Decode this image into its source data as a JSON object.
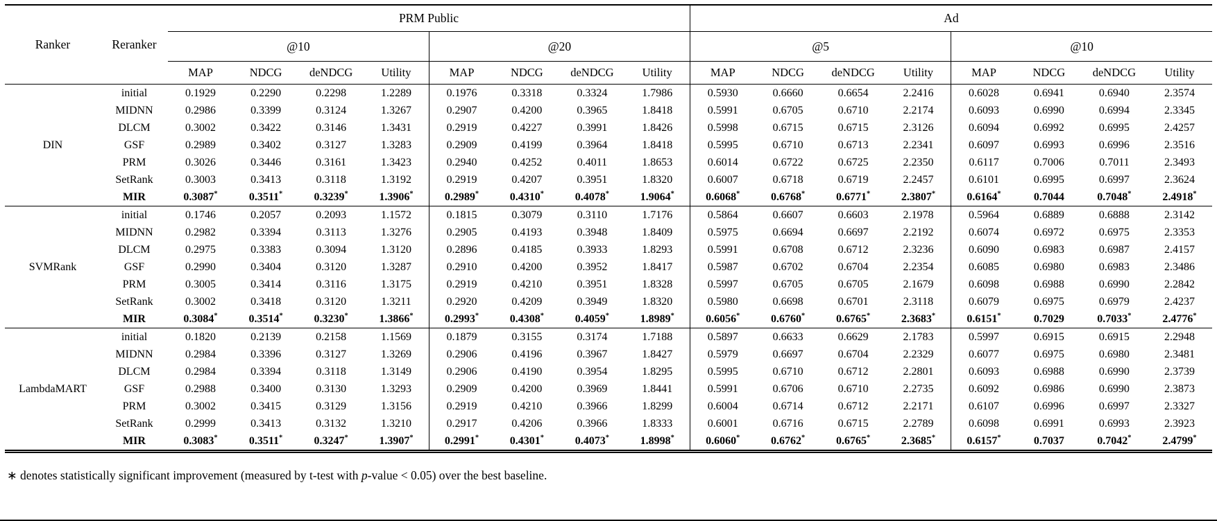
{
  "table": {
    "corner": {
      "ranker": "Ranker",
      "reranker": "Reranker"
    },
    "datasets": [
      {
        "name": "PRM Public",
        "cutoffs": [
          "@10",
          "@20"
        ]
      },
      {
        "name": "Ad",
        "cutoffs": [
          "@5",
          "@10"
        ]
      }
    ],
    "metrics": [
      "MAP",
      "NDCG",
      "deNDCG",
      "Utility"
    ],
    "blocks": [
      {
        "ranker": "DIN",
        "rows": [
          {
            "reranker": "initial",
            "bold": false,
            "values": [
              "0.1929",
              "0.2290",
              "0.2298",
              "1.2289",
              "0.1976",
              "0.3318",
              "0.3324",
              "1.7986",
              "0.5930",
              "0.6660",
              "0.6654",
              "2.2416",
              "0.6028",
              "0.6941",
              "0.6940",
              "2.3574"
            ]
          },
          {
            "reranker": "MIDNN",
            "bold": false,
            "values": [
              "0.2986",
              "0.3399",
              "0.3124",
              "1.3267",
              "0.2907",
              "0.4200",
              "0.3965",
              "1.8418",
              "0.5991",
              "0.6705",
              "0.6710",
              "2.2174",
              "0.6093",
              "0.6990",
              "0.6994",
              "2.3345"
            ]
          },
          {
            "reranker": "DLCM",
            "bold": false,
            "values": [
              "0.3002",
              "0.3422",
              "0.3146",
              "1.3431",
              "0.2919",
              "0.4227",
              "0.3991",
              "1.8426",
              "0.5998",
              "0.6715",
              "0.6715",
              "2.3126",
              "0.6094",
              "0.6992",
              "0.6995",
              "2.4257"
            ]
          },
          {
            "reranker": "GSF",
            "bold": false,
            "values": [
              "0.2989",
              "0.3402",
              "0.3127",
              "1.3283",
              "0.2909",
              "0.4199",
              "0.3964",
              "1.8418",
              "0.5995",
              "0.6710",
              "0.6713",
              "2.2341",
              "0.6097",
              "0.6993",
              "0.6996",
              "2.3516"
            ]
          },
          {
            "reranker": "PRM",
            "bold": false,
            "values": [
              "0.3026",
              "0.3446",
              "0.3161",
              "1.3423",
              "0.2940",
              "0.4252",
              "0.4011",
              "1.8653",
              "0.6014",
              "0.6722",
              "0.6725",
              "2.2350",
              "0.6117",
              "0.7006",
              "0.7011",
              "2.3493"
            ]
          },
          {
            "reranker": "SetRank",
            "bold": false,
            "values": [
              "0.3003",
              "0.3413",
              "0.3118",
              "1.3192",
              "0.2919",
              "0.4207",
              "0.3951",
              "1.8320",
              "0.6007",
              "0.6718",
              "0.6719",
              "2.2457",
              "0.6101",
              "0.6995",
              "0.6997",
              "2.3624"
            ]
          },
          {
            "reranker": "MIR",
            "bold": true,
            "values": [
              "0.3087*",
              "0.3511*",
              "0.3239*",
              "1.3906*",
              "0.2989*",
              "0.4310*",
              "0.4078*",
              "1.9064*",
              "0.6068*",
              "0.6768*",
              "0.6771*",
              "2.3807*",
              "0.6164*",
              "0.7044",
              "0.7048*",
              "2.4918*"
            ]
          }
        ]
      },
      {
        "ranker": "SVMRank",
        "rows": [
          {
            "reranker": "initial",
            "bold": false,
            "values": [
              "0.1746",
              "0.2057",
              "0.2093",
              "1.1572",
              "0.1815",
              "0.3079",
              "0.3110",
              "1.7176",
              "0.5864",
              "0.6607",
              "0.6603",
              "2.1978",
              "0.5964",
              "0.6889",
              "0.6888",
              "2.3142"
            ]
          },
          {
            "reranker": "MIDNN",
            "bold": false,
            "values": [
              "0.2982",
              "0.3394",
              "0.3113",
              "1.3276",
              "0.2905",
              "0.4193",
              "0.3948",
              "1.8409",
              "0.5975",
              "0.6694",
              "0.6697",
              "2.2192",
              "0.6074",
              "0.6972",
              "0.6975",
              "2.3353"
            ]
          },
          {
            "reranker": "DLCM",
            "bold": false,
            "values": [
              "0.2975",
              "0.3383",
              "0.3094",
              "1.3120",
              "0.2896",
              "0.4185",
              "0.3933",
              "1.8293",
              "0.5991",
              "0.6708",
              "0.6712",
              "2.3236",
              "0.6090",
              "0.6983",
              "0.6987",
              "2.4157"
            ]
          },
          {
            "reranker": "GSF",
            "bold": false,
            "values": [
              "0.2990",
              "0.3404",
              "0.3120",
              "1.3287",
              "0.2910",
              "0.4200",
              "0.3952",
              "1.8417",
              "0.5987",
              "0.6702",
              "0.6704",
              "2.2354",
              "0.6085",
              "0.6980",
              "0.6983",
              "2.3486"
            ]
          },
          {
            "reranker": "PRM",
            "bold": false,
            "values": [
              "0.3005",
              "0.3414",
              "0.3116",
              "1.3175",
              "0.2919",
              "0.4210",
              "0.3951",
              "1.8328",
              "0.5997",
              "0.6705",
              "0.6705",
              "2.1679",
              "0.6098",
              "0.6988",
              "0.6990",
              "2.2842"
            ]
          },
          {
            "reranker": "SetRank",
            "bold": false,
            "values": [
              "0.3002",
              "0.3418",
              "0.3120",
              "1.3211",
              "0.2920",
              "0.4209",
              "0.3949",
              "1.8320",
              "0.5980",
              "0.6698",
              "0.6701",
              "2.3118",
              "0.6079",
              "0.6975",
              "0.6979",
              "2.4237"
            ]
          },
          {
            "reranker": "MIR",
            "bold": true,
            "values": [
              "0.3084*",
              "0.3514*",
              "0.3230*",
              "1.3866*",
              "0.2993*",
              "0.4308*",
              "0.4059*",
              "1.8989*",
              "0.6056*",
              "0.6760*",
              "0.6765*",
              "2.3683*",
              "0.6151*",
              "0.7029",
              "0.7033*",
              "2.4776*"
            ]
          }
        ]
      },
      {
        "ranker": "LambdaMART",
        "rows": [
          {
            "reranker": "initial",
            "bold": false,
            "values": [
              "0.1820",
              "0.2139",
              "0.2158",
              "1.1569",
              "0.1879",
              "0.3155",
              "0.3174",
              "1.7188",
              "0.5897",
              "0.6633",
              "0.6629",
              "2.1783",
              "0.5997",
              "0.6915",
              "0.6915",
              "2.2948"
            ]
          },
          {
            "reranker": "MIDNN",
            "bold": false,
            "values": [
              "0.2984",
              "0.3396",
              "0.3127",
              "1.3269",
              "0.2906",
              "0.4196",
              "0.3967",
              "1.8427",
              "0.5979",
              "0.6697",
              "0.6704",
              "2.2329",
              "0.6077",
              "0.6975",
              "0.6980",
              "2.3481"
            ]
          },
          {
            "reranker": "DLCM",
            "bold": false,
            "values": [
              "0.2984",
              "0.3394",
              "0.3118",
              "1.3149",
              "0.2906",
              "0.4190",
              "0.3954",
              "1.8295",
              "0.5995",
              "0.6710",
              "0.6712",
              "2.2801",
              "0.6093",
              "0.6988",
              "0.6990",
              "2.3739"
            ]
          },
          {
            "reranker": "GSF",
            "bold": false,
            "values": [
              "0.2988",
              "0.3400",
              "0.3130",
              "1.3293",
              "0.2909",
              "0.4200",
              "0.3969",
              "1.8441",
              "0.5991",
              "0.6706",
              "0.6710",
              "2.2735",
              "0.6092",
              "0.6986",
              "0.6990",
              "2.3873"
            ]
          },
          {
            "reranker": "PRM",
            "bold": false,
            "values": [
              "0.3002",
              "0.3415",
              "0.3129",
              "1.3156",
              "0.2919",
              "0.4210",
              "0.3966",
              "1.8299",
              "0.6004",
              "0.6714",
              "0.6712",
              "2.2171",
              "0.6107",
              "0.6996",
              "0.6997",
              "2.3327"
            ]
          },
          {
            "reranker": "SetRank",
            "bold": false,
            "values": [
              "0.2999",
              "0.3413",
              "0.3132",
              "1.3210",
              "0.2917",
              "0.4206",
              "0.3966",
              "1.8333",
              "0.6001",
              "0.6716",
              "0.6715",
              "2.2789",
              "0.6098",
              "0.6991",
              "0.6993",
              "2.3923"
            ]
          },
          {
            "reranker": "MIR",
            "bold": true,
            "values": [
              "0.3083*",
              "0.3511*",
              "0.3247*",
              "1.3907*",
              "0.2991*",
              "0.4301*",
              "0.4073*",
              "1.8998*",
              "0.6060*",
              "0.6762*",
              "0.6765*",
              "2.3685*",
              "0.6157*",
              "0.7037",
              "0.7042*",
              "2.4799*"
            ]
          }
        ]
      }
    ]
  },
  "footnote": {
    "symbol": "∗",
    "pre": " denotes statistically significant improvement (measured by t-test with ",
    "italic": "p",
    "post": "-value < 0.05) over the best baseline."
  }
}
